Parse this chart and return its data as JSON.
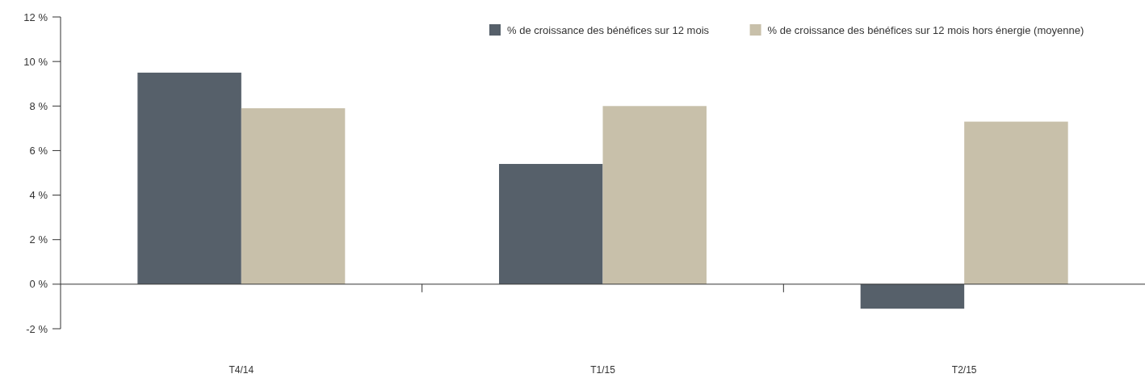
{
  "chart_data": {
    "type": "bar",
    "categories": [
      "T4/14",
      "T1/15",
      "T2/15"
    ],
    "series": [
      {
        "name": "% de croissance des bénéfices sur 12 mois",
        "color": "#56606a",
        "values": [
          9.5,
          5.4,
          -1.1
        ]
      },
      {
        "name": "% de croissance des bénéfices sur 12 mois hors énergie (moyenne)",
        "color": "#c8c0aa",
        "values": [
          7.9,
          8.0,
          7.3
        ]
      }
    ],
    "ylim": [
      -2,
      12
    ],
    "yticks": [
      {
        "value": -2,
        "label": "-2 %"
      },
      {
        "value": 0,
        "label": "0 %"
      },
      {
        "value": 2,
        "label": "2 %"
      },
      {
        "value": 4,
        "label": "4 %"
      },
      {
        "value": 6,
        "label": "6 %"
      },
      {
        "value": 8,
        "label": "8 %"
      },
      {
        "value": 10,
        "label": "10 %"
      },
      {
        "value": 12,
        "label": "12 %"
      }
    ],
    "legend": "top right"
  }
}
